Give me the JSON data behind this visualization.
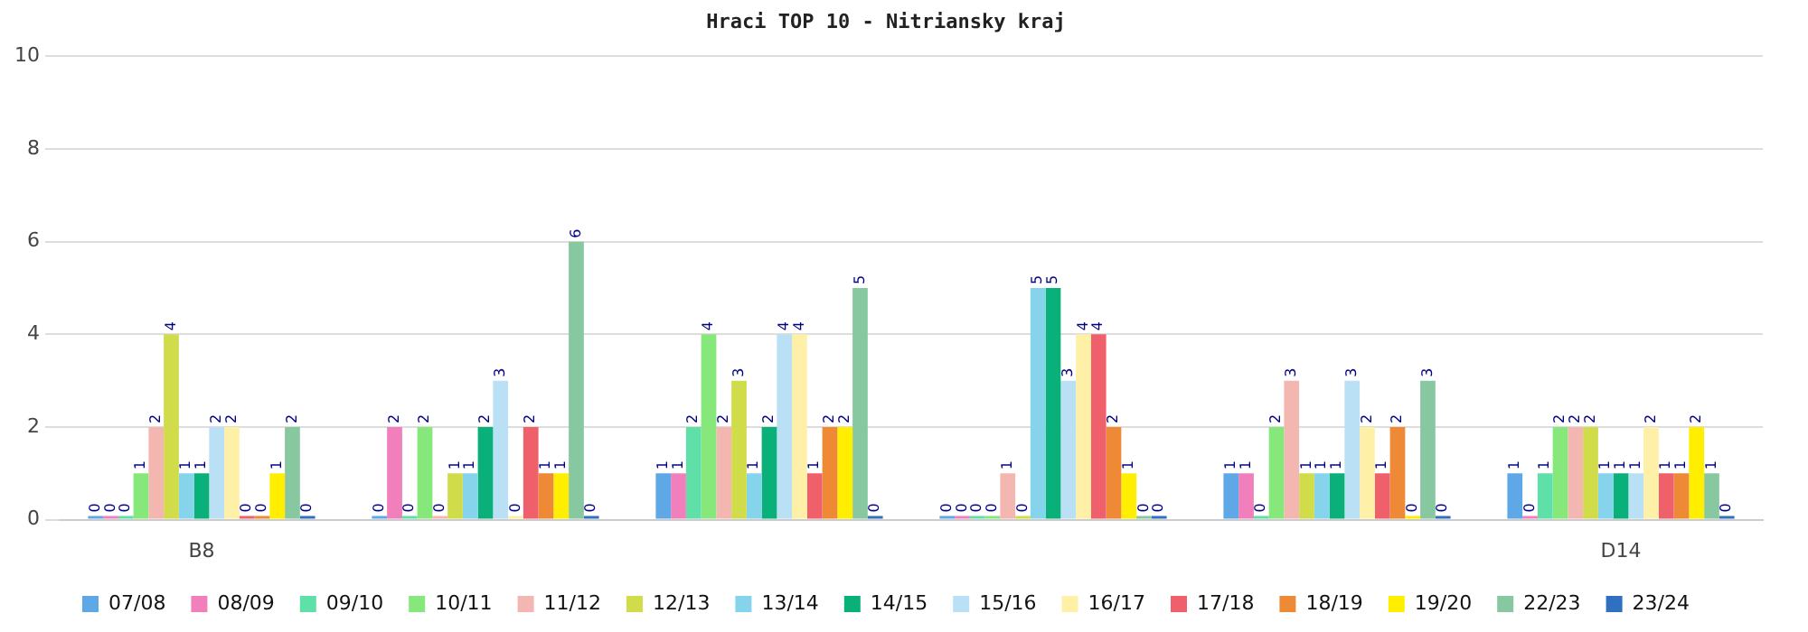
{
  "chart_data": {
    "type": "bar",
    "title": "Hraci TOP 10 - Nitriansky kraj",
    "categories": [
      "B8",
      null,
      null,
      null,
      null,
      "D14"
    ],
    "series": [
      {
        "name": "07/08",
        "color": "#5fa8e8",
        "values": [
          0,
          0,
          1,
          0,
          1,
          1
        ]
      },
      {
        "name": "08/09",
        "color": "#f07fbc",
        "values": [
          0,
          2,
          1,
          0,
          1,
          0
        ]
      },
      {
        "name": "09/10",
        "color": "#5fe0a8",
        "values": [
          0,
          0,
          2,
          0,
          0,
          1
        ]
      },
      {
        "name": "10/11",
        "color": "#86e87a",
        "values": [
          1,
          2,
          4,
          0,
          2,
          2
        ]
      },
      {
        "name": "11/12",
        "color": "#f4b6b0",
        "values": [
          2,
          0,
          2,
          1,
          3,
          2
        ]
      },
      {
        "name": "12/13",
        "color": "#d0dc4a",
        "values": [
          4,
          1,
          3,
          0,
          1,
          2
        ]
      },
      {
        "name": "13/14",
        "color": "#86d4ec",
        "values": [
          1,
          1,
          1,
          5,
          1,
          1
        ]
      },
      {
        "name": "14/15",
        "color": "#0ab07a",
        "values": [
          1,
          2,
          2,
          5,
          1,
          1
        ]
      },
      {
        "name": "15/16",
        "color": "#b9e0f4",
        "values": [
          2,
          3,
          4,
          3,
          3,
          1
        ]
      },
      {
        "name": "16/17",
        "color": "#fff0a8",
        "values": [
          2,
          0,
          4,
          4,
          2,
          2
        ]
      },
      {
        "name": "17/18",
        "color": "#f0606a",
        "values": [
          0,
          2,
          1,
          4,
          1,
          1
        ]
      },
      {
        "name": "18/19",
        "color": "#ee8a36",
        "values": [
          0,
          1,
          2,
          2,
          2,
          1
        ]
      },
      {
        "name": "19/20",
        "color": "#ffee00",
        "values": [
          1,
          1,
          2,
          1,
          0,
          2
        ]
      },
      {
        "name": "22/23",
        "color": "#88c8a0",
        "values": [
          2,
          6,
          5,
          0,
          3,
          1
        ]
      },
      {
        "name": "23/24",
        "color": "#3070c0",
        "values": [
          0,
          0,
          0,
          0,
          0,
          0
        ]
      }
    ],
    "ylim": [
      0,
      10
    ],
    "yticks": [
      0,
      2,
      4,
      6,
      8,
      10
    ],
    "grid": "y",
    "legend": "bottom",
    "data_labels": true
  }
}
